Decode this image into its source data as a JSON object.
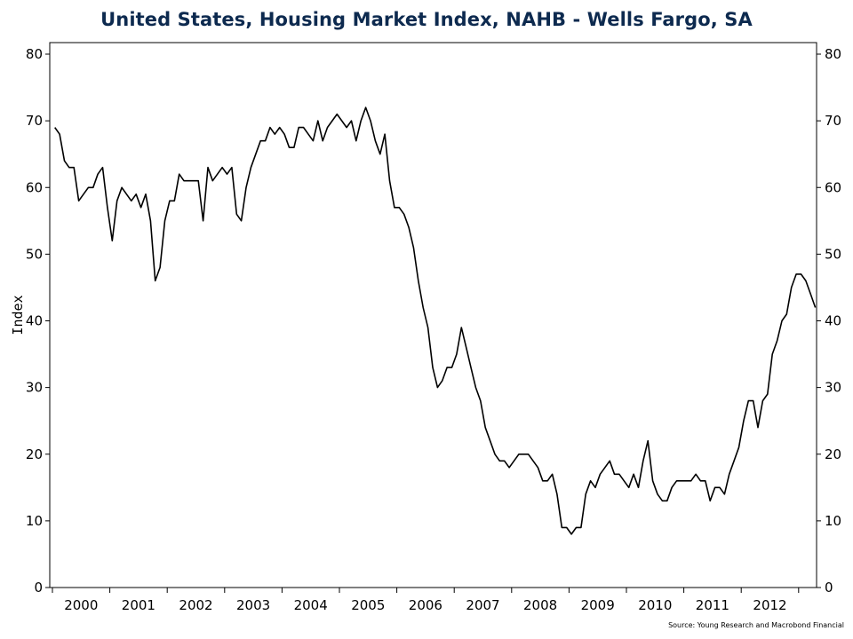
{
  "colors": {
    "title": "#0d2a4f",
    "line": "#000000",
    "axis": "#000000",
    "text": "#000000"
  },
  "chart_data": {
    "type": "line",
    "title": "United States, Housing Market Index, NAHB - Wells Fargo, SA",
    "ylabel": "Index",
    "xlabel": "",
    "ylim": [
      0,
      80
    ],
    "yticks": [
      0,
      10,
      20,
      30,
      40,
      50,
      60,
      70,
      80
    ],
    "y_axis_sides": [
      "left",
      "right"
    ],
    "xticks": [
      "2000",
      "2001",
      "2002",
      "2003",
      "2004",
      "2005",
      "2006",
      "2007",
      "2008",
      "2009",
      "2010",
      "2011",
      "2012"
    ],
    "x_range": [
      "2000-01",
      "2012-12"
    ],
    "grid": false,
    "legend": "none",
    "series": [
      {
        "start": "2000-01",
        "frequency": "monthly",
        "values": [
          69,
          68,
          64,
          63,
          63,
          58,
          59,
          60,
          60,
          62,
          63,
          57,
          52,
          58,
          60,
          59,
          58,
          59,
          57,
          59,
          55,
          46,
          48,
          55,
          58,
          58,
          62,
          61,
          61,
          61,
          61,
          55,
          63,
          61,
          62,
          63,
          62,
          63,
          56,
          55,
          60,
          63,
          65,
          67,
          67,
          69,
          68,
          69,
          68,
          66,
          66,
          69,
          69,
          68,
          67,
          70,
          67,
          69,
          70,
          71,
          70,
          69,
          70,
          67,
          70,
          72,
          70,
          67,
          65,
          68,
          61,
          57,
          57,
          56,
          54,
          51,
          46,
          42,
          39,
          33,
          30,
          31,
          33,
          33,
          35,
          39,
          36,
          33,
          30,
          28,
          24,
          22,
          20,
          19,
          19,
          18,
          19,
          20,
          20,
          20,
          19,
          18,
          16,
          16,
          17,
          14,
          9,
          9,
          8,
          9,
          9,
          14,
          16,
          15,
          17,
          18,
          19,
          17,
          17,
          16,
          15,
          17,
          15,
          19,
          22,
          16,
          14,
          13,
          13,
          15,
          16,
          16,
          16,
          16,
          17,
          16,
          16,
          13,
          15,
          15,
          14,
          17,
          19,
          21,
          25,
          28,
          28,
          24,
          28,
          29,
          35,
          37,
          40,
          41,
          45,
          47,
          47,
          46,
          44,
          42
        ]
      }
    ]
  },
  "source": "Source: Young Research and Macrobond Financial"
}
